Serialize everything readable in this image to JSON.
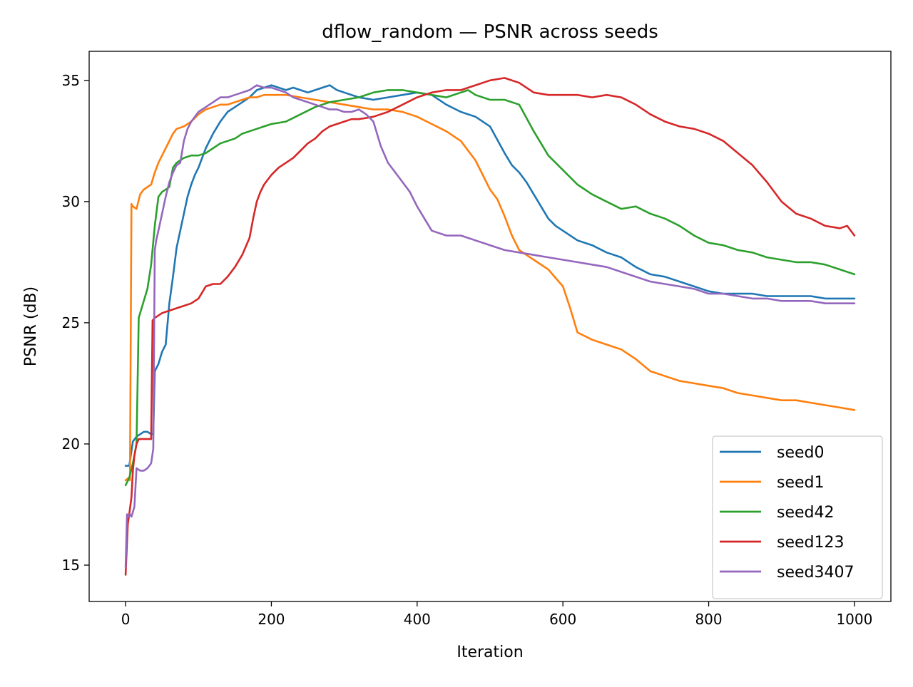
{
  "chart_data": {
    "type": "line",
    "title": "dflow_random — PSNR across seeds",
    "xlabel": "Iteration",
    "ylabel": "PSNR (dB)",
    "xlim": [
      -50,
      1050
    ],
    "ylim": [
      13.5,
      36.2
    ],
    "xticks": [
      0,
      200,
      400,
      600,
      800,
      1000
    ],
    "yticks": [
      15,
      20,
      25,
      30,
      35
    ],
    "grid": false,
    "legend_position": "lower-right",
    "series": [
      {
        "name": "seed0",
        "color": "#1f77b4",
        "x": [
          0,
          5,
          10,
          15,
          20,
          25,
          30,
          35,
          38,
          40,
          45,
          50,
          55,
          60,
          65,
          70,
          75,
          80,
          85,
          90,
          95,
          100,
          110,
          120,
          130,
          140,
          150,
          160,
          170,
          180,
          190,
          200,
          210,
          220,
          230,
          240,
          250,
          260,
          270,
          280,
          290,
          300,
          320,
          340,
          360,
          380,
          400,
          420,
          440,
          460,
          480,
          500,
          520,
          530,
          540,
          550,
          560,
          570,
          580,
          590,
          600,
          620,
          640,
          660,
          680,
          700,
          720,
          740,
          760,
          780,
          800,
          820,
          840,
          860,
          880,
          900,
          920,
          940,
          960,
          980,
          1000
        ],
        "y": [
          19.1,
          19.1,
          20.1,
          20.3,
          20.4,
          20.5,
          20.5,
          20.4,
          20.4,
          23.0,
          23.3,
          23.8,
          24.1,
          25.8,
          26.9,
          28.1,
          28.8,
          29.5,
          30.2,
          30.7,
          31.1,
          31.4,
          32.2,
          32.8,
          33.3,
          33.7,
          33.9,
          34.1,
          34.3,
          34.6,
          34.7,
          34.8,
          34.7,
          34.6,
          34.7,
          34.6,
          34.5,
          34.6,
          34.7,
          34.8,
          34.6,
          34.5,
          34.3,
          34.2,
          34.3,
          34.4,
          34.5,
          34.4,
          34.0,
          33.7,
          33.5,
          33.1,
          32.0,
          31.5,
          31.2,
          30.8,
          30.3,
          29.8,
          29.3,
          29.0,
          28.8,
          28.4,
          28.2,
          27.9,
          27.7,
          27.3,
          27.0,
          26.9,
          26.7,
          26.5,
          26.3,
          26.2,
          26.2,
          26.2,
          26.1,
          26.1,
          26.1,
          26.1,
          26.0,
          26.0,
          26.0
        ]
      },
      {
        "name": "seed1",
        "color": "#ff7f0e",
        "x": [
          0,
          4,
          6,
          8,
          10,
          15,
          20,
          25,
          30,
          35,
          40,
          45,
          50,
          55,
          60,
          65,
          70,
          80,
          90,
          100,
          110,
          120,
          130,
          140,
          150,
          160,
          170,
          180,
          190,
          200,
          220,
          240,
          260,
          280,
          300,
          320,
          340,
          360,
          380,
          400,
          420,
          440,
          460,
          480,
          500,
          510,
          520,
          530,
          540,
          560,
          580,
          600,
          610,
          620,
          640,
          660,
          680,
          700,
          720,
          740,
          760,
          780,
          800,
          820,
          840,
          860,
          880,
          900,
          920,
          940,
          960,
          980,
          1000
        ],
        "y": [
          18.5,
          18.6,
          18.5,
          29.9,
          29.8,
          29.7,
          30.3,
          30.5,
          30.6,
          30.7,
          31.2,
          31.6,
          31.9,
          32.2,
          32.5,
          32.8,
          33.0,
          33.1,
          33.3,
          33.6,
          33.8,
          33.9,
          34.0,
          34.0,
          34.1,
          34.2,
          34.3,
          34.3,
          34.4,
          34.4,
          34.4,
          34.3,
          34.2,
          34.1,
          34.0,
          33.9,
          33.8,
          33.8,
          33.7,
          33.5,
          33.2,
          32.9,
          32.5,
          31.7,
          30.5,
          30.1,
          29.4,
          28.6,
          28.0,
          27.6,
          27.2,
          26.5,
          25.6,
          24.6,
          24.3,
          24.1,
          23.9,
          23.5,
          23.0,
          22.8,
          22.6,
          22.5,
          22.4,
          22.3,
          22.1,
          22.0,
          21.9,
          21.8,
          21.8,
          21.7,
          21.6,
          21.5,
          21.4
        ]
      },
      {
        "name": "seed42",
        "color": "#2ca02c",
        "x": [
          0,
          5,
          10,
          15,
          18,
          20,
          25,
          30,
          35,
          40,
          45,
          50,
          55,
          60,
          65,
          70,
          75,
          80,
          90,
          100,
          110,
          120,
          130,
          140,
          150,
          160,
          170,
          180,
          190,
          200,
          220,
          240,
          260,
          280,
          300,
          320,
          340,
          360,
          380,
          400,
          420,
          440,
          460,
          470,
          480,
          500,
          520,
          540,
          560,
          580,
          600,
          620,
          640,
          660,
          680,
          700,
          720,
          740,
          760,
          780,
          800,
          820,
          840,
          860,
          880,
          900,
          920,
          940,
          960,
          980,
          1000
        ],
        "y": [
          18.3,
          18.6,
          19.2,
          20.0,
          25.2,
          25.4,
          25.9,
          26.4,
          27.4,
          29.0,
          30.2,
          30.4,
          30.5,
          30.6,
          31.4,
          31.6,
          31.7,
          31.8,
          31.9,
          31.9,
          32.0,
          32.2,
          32.4,
          32.5,
          32.6,
          32.8,
          32.9,
          33.0,
          33.1,
          33.2,
          33.3,
          33.6,
          33.9,
          34.1,
          34.2,
          34.3,
          34.5,
          34.6,
          34.6,
          34.5,
          34.4,
          34.3,
          34.5,
          34.6,
          34.4,
          34.2,
          34.2,
          34.0,
          32.9,
          31.9,
          31.3,
          30.7,
          30.3,
          30.0,
          29.7,
          29.8,
          29.5,
          29.3,
          29.0,
          28.6,
          28.3,
          28.2,
          28.0,
          27.9,
          27.7,
          27.6,
          27.5,
          27.5,
          27.4,
          27.2,
          27.0
        ]
      },
      {
        "name": "seed123",
        "color": "#d62728",
        "x": [
          0,
          3,
          5,
          8,
          10,
          12,
          15,
          18,
          20,
          25,
          30,
          35,
          37,
          40,
          45,
          50,
          60,
          70,
          80,
          90,
          100,
          110,
          120,
          130,
          140,
          150,
          160,
          170,
          175,
          180,
          185,
          190,
          200,
          210,
          220,
          230,
          240,
          250,
          260,
          270,
          280,
          290,
          300,
          310,
          320,
          340,
          360,
          380,
          400,
          420,
          440,
          460,
          480,
          500,
          520,
          540,
          560,
          580,
          600,
          620,
          640,
          660,
          680,
          700,
          720,
          740,
          760,
          780,
          800,
          820,
          840,
          860,
          880,
          900,
          920,
          940,
          960,
          980,
          990,
          1000
        ],
        "y": [
          14.6,
          16.7,
          17.1,
          17.8,
          18.9,
          19.5,
          20.0,
          20.2,
          20.2,
          20.2,
          20.2,
          20.2,
          25.1,
          25.2,
          25.3,
          25.4,
          25.5,
          25.6,
          25.7,
          25.8,
          26.0,
          26.5,
          26.6,
          26.6,
          26.9,
          27.3,
          27.8,
          28.5,
          29.3,
          30.0,
          30.4,
          30.7,
          31.1,
          31.4,
          31.6,
          31.8,
          32.1,
          32.4,
          32.6,
          32.9,
          33.1,
          33.2,
          33.3,
          33.4,
          33.4,
          33.5,
          33.7,
          34.0,
          34.3,
          34.5,
          34.6,
          34.6,
          34.8,
          35.0,
          35.1,
          34.9,
          34.5,
          34.4,
          34.4,
          34.4,
          34.3,
          34.4,
          34.3,
          34.0,
          33.6,
          33.3,
          33.1,
          33.0,
          32.8,
          32.5,
          32.0,
          31.5,
          30.8,
          30.0,
          29.5,
          29.3,
          29.0,
          28.9,
          29.0,
          28.6
        ]
      },
      {
        "name": "seed3407",
        "color": "#9467bd",
        "x": [
          0,
          2,
          4,
          6,
          8,
          10,
          12,
          15,
          20,
          25,
          30,
          35,
          38,
          40,
          42,
          45,
          50,
          55,
          60,
          65,
          70,
          75,
          80,
          85,
          90,
          100,
          110,
          120,
          130,
          140,
          150,
          160,
          170,
          180,
          190,
          200,
          210,
          220,
          230,
          240,
          250,
          260,
          270,
          280,
          290,
          300,
          310,
          320,
          330,
          340,
          350,
          360,
          370,
          380,
          390,
          400,
          420,
          440,
          460,
          480,
          500,
          520,
          540,
          560,
          580,
          600,
          620,
          640,
          660,
          680,
          700,
          720,
          740,
          760,
          780,
          800,
          820,
          840,
          860,
          880,
          900,
          920,
          940,
          960,
          980,
          1000
        ],
        "y": [
          14.9,
          17.1,
          17.0,
          17.1,
          17.0,
          17.2,
          17.4,
          19.0,
          18.9,
          18.9,
          19.0,
          19.2,
          19.8,
          28.0,
          28.4,
          28.8,
          29.5,
          30.2,
          30.8,
          31.2,
          31.5,
          31.6,
          32.5,
          33.0,
          33.3,
          33.7,
          33.9,
          34.1,
          34.3,
          34.3,
          34.4,
          34.5,
          34.6,
          34.8,
          34.7,
          34.7,
          34.6,
          34.5,
          34.3,
          34.2,
          34.1,
          34.0,
          33.9,
          33.8,
          33.8,
          33.7,
          33.7,
          33.8,
          33.6,
          33.3,
          32.3,
          31.6,
          31.2,
          30.8,
          30.4,
          29.8,
          28.8,
          28.6,
          28.6,
          28.4,
          28.2,
          28.0,
          27.9,
          27.8,
          27.7,
          27.6,
          27.5,
          27.4,
          27.3,
          27.1,
          26.9,
          26.7,
          26.6,
          26.5,
          26.4,
          26.2,
          26.2,
          26.1,
          26.0,
          26.0,
          25.9,
          25.9,
          25.9,
          25.8,
          25.8,
          25.8
        ]
      }
    ]
  }
}
